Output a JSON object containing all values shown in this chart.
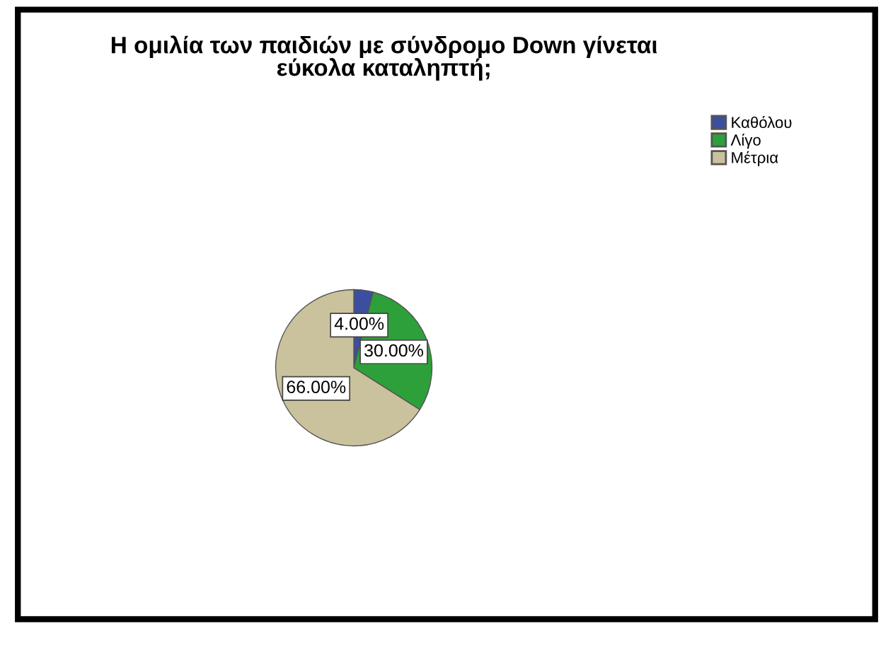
{
  "chart_data": {
    "type": "pie",
    "title": "Η ομιλία των παιδιών με σύνδρομο Down γίνεται\nεύκολα καταληπτή;",
    "categories": [
      "Καθόλου",
      "Λίγο",
      "Μέτρια"
    ],
    "values": [
      4,
      30,
      66
    ],
    "value_labels": [
      "4.00%",
      "30.00%",
      "66.00%"
    ],
    "colors": [
      "#3c4ea0",
      "#2ea03a",
      "#c9c29c"
    ],
    "legend": "top right"
  }
}
